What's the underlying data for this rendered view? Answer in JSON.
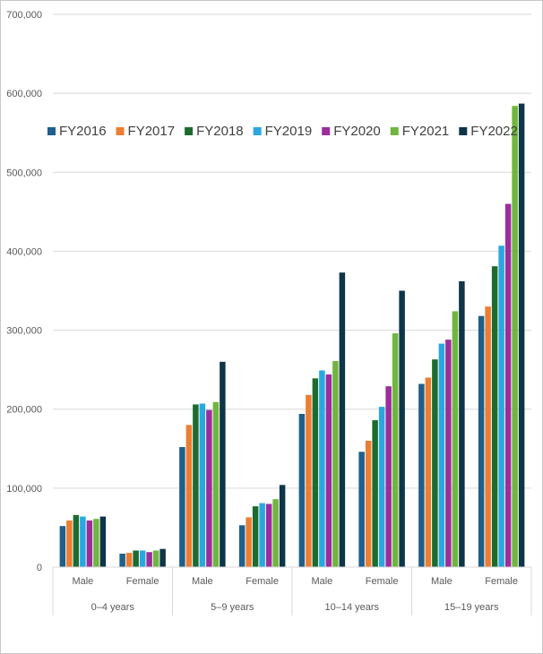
{
  "chart_data": {
    "type": "bar",
    "title": "",
    "xlabel": "",
    "ylabel": "",
    "ylim": [
      0,
      700000
    ],
    "yticks": [
      0,
      100000,
      200000,
      300000,
      400000,
      500000,
      600000,
      700000
    ],
    "ytick_labels": [
      "0",
      "100,000",
      "200,000",
      "300,000",
      "400,000",
      "500,000",
      "600,000",
      "700,000"
    ],
    "grid": true,
    "legend_position": "top-left",
    "groups": [
      "0–4 years",
      "5–9 years",
      "10–14 years",
      "15–19 years"
    ],
    "subcategories": [
      "Male",
      "Female"
    ],
    "categories": [
      "Male",
      "Female",
      "Male",
      "Female",
      "Male",
      "Female",
      "Male",
      "Female"
    ],
    "series": [
      {
        "name": "FY2016",
        "color": "#1f5f8b",
        "values": [
          52000,
          17000,
          152000,
          53000,
          194000,
          146000,
          232000,
          318000
        ]
      },
      {
        "name": "FY2017",
        "color": "#ed7d31",
        "values": [
          59000,
          18000,
          180000,
          63000,
          218000,
          160000,
          240000,
          330000
        ]
      },
      {
        "name": "FY2018",
        "color": "#1e6b2e",
        "values": [
          66000,
          21000,
          206000,
          77000,
          239000,
          186000,
          263000,
          381000
        ]
      },
      {
        "name": "FY2019",
        "color": "#29a8e0",
        "values": [
          64000,
          21000,
          207000,
          81000,
          249000,
          203000,
          283000,
          407000
        ]
      },
      {
        "name": "FY2020",
        "color": "#9c2d9c",
        "values": [
          59000,
          19000,
          199000,
          80000,
          244000,
          229000,
          288000,
          460000
        ]
      },
      {
        "name": "FY2021",
        "color": "#70b53f",
        "values": [
          61000,
          21000,
          209000,
          86000,
          261000,
          296000,
          324000,
          584000
        ]
      },
      {
        "name": "FY2022",
        "color": "#0e3548",
        "values": [
          64000,
          23000,
          260000,
          104000,
          373000,
          350000,
          362000,
          587000
        ]
      }
    ]
  }
}
